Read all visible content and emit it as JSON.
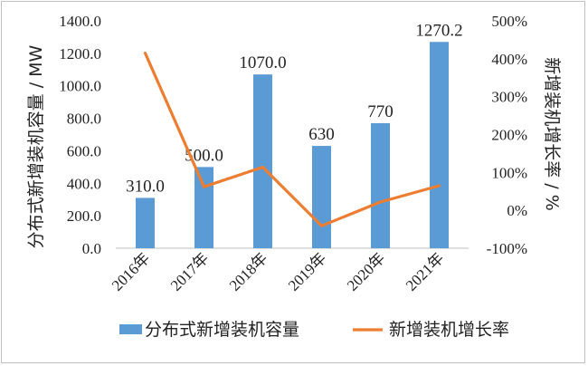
{
  "chart_data": {
    "type": "bar+line",
    "categories": [
      "2016年",
      "2017年",
      "2018年",
      "2019年",
      "2020年",
      "2021年"
    ],
    "series": [
      {
        "name": "分布式新增装机容量",
        "type": "bar",
        "axis": "left",
        "values": [
          310.0,
          500.0,
          1070.0,
          630,
          770,
          1270.2
        ],
        "labels": [
          "310.0",
          "500.0",
          "1070.0",
          "630",
          "770",
          "1270.2"
        ],
        "color": "#5b9bd5"
      },
      {
        "name": "新增装机增长率",
        "type": "line",
        "axis": "right",
        "values": [
          41.5,
          6.2,
          11.4,
          -4.1,
          2.2,
          6.5
        ],
        "unit": "percent_x10",
        "color": "#ed7d31"
      }
    ],
    "left_axis": {
      "label": "分布式新增装机容量 / MW",
      "range": [
        0,
        1400
      ],
      "ticks": [
        "0.0",
        "200.0",
        "400.0",
        "600.0",
        "800.0",
        "1000.0",
        "1200.0",
        "1400.0"
      ]
    },
    "right_axis": {
      "label": "新增装机增长率 / %",
      "range": [
        -100,
        500
      ],
      "ticks": [
        "-100%",
        "0%",
        "100%",
        "200%",
        "300%",
        "400%",
        "500%"
      ]
    },
    "legend": {
      "position": "bottom"
    },
    "grid": false
  }
}
